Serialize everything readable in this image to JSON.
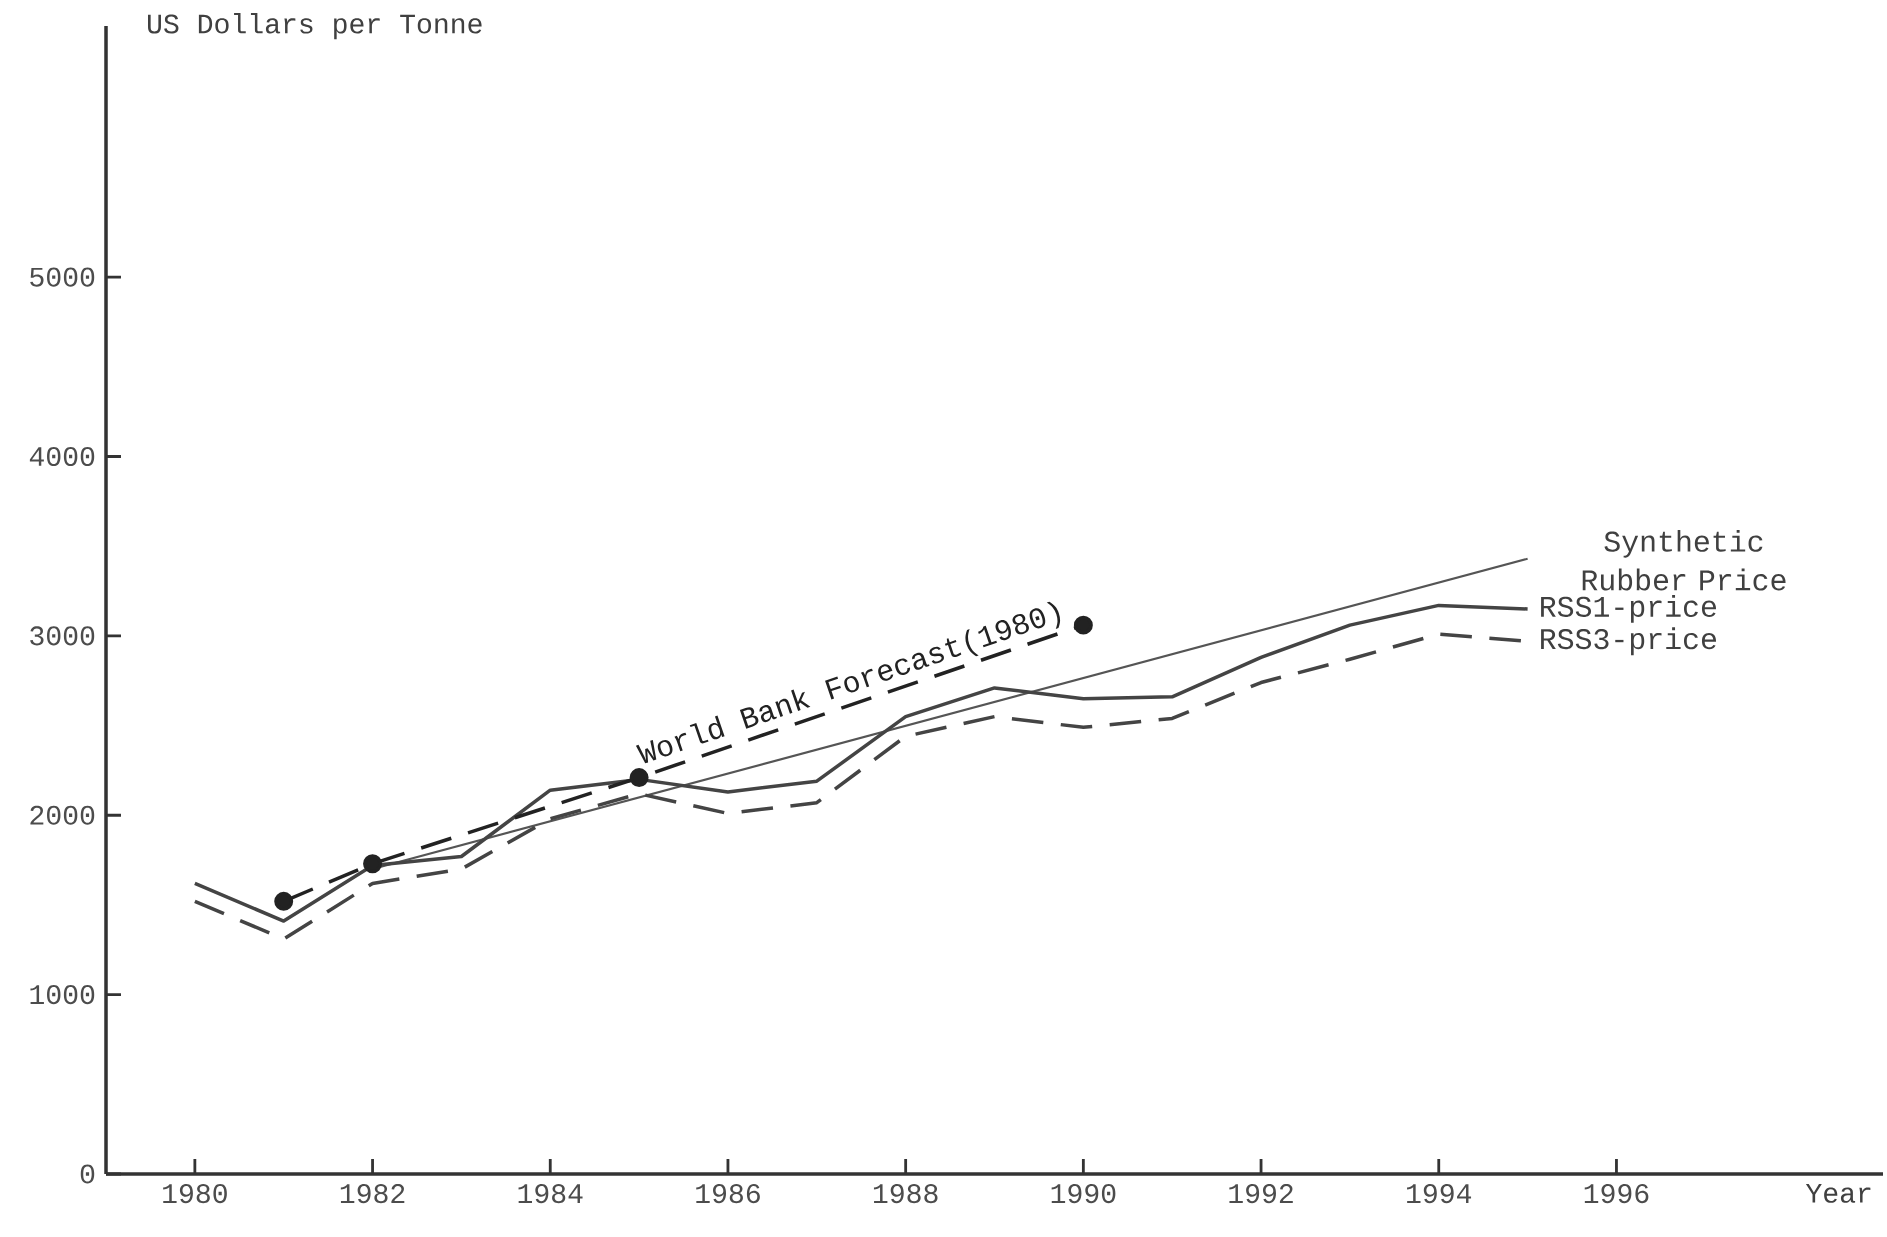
{
  "chart_data": {
    "type": "line",
    "ylabel": "US Dollars per Tonne",
    "xlabel": "Year",
    "xlim": [
      1979,
      1999
    ],
    "ylim": [
      0,
      6400
    ],
    "xticks": [
      1980,
      1982,
      1984,
      1986,
      1988,
      1990,
      1992,
      1994,
      1996
    ],
    "yticks": [
      0,
      1000,
      2000,
      3000,
      4000,
      5000
    ],
    "series": [
      {
        "name": "Synthetic Rubber Price",
        "color": "#555555",
        "line_style": "solid",
        "x": [
          1982,
          1995
        ],
        "values": [
          1700,
          3430
        ]
      },
      {
        "name": "RSS1-price",
        "color": "#444444",
        "line_style": "solid",
        "x": [
          1980,
          1981,
          1982,
          1983,
          1984,
          1985,
          1986,
          1987,
          1988,
          1989,
          1990,
          1991,
          1992,
          1993,
          1994,
          1995
        ],
        "values": [
          1620,
          1410,
          1720,
          1770,
          2140,
          2200,
          2130,
          2190,
          2550,
          2710,
          2650,
          2660,
          2880,
          3060,
          3170,
          3150
        ]
      },
      {
        "name": "RSS3-price",
        "color": "#444444",
        "line_style": "dashed",
        "x": [
          1980,
          1981,
          1982,
          1983,
          1984,
          1985,
          1986,
          1987,
          1988,
          1989,
          1990,
          1991,
          1992,
          1993,
          1994,
          1995
        ],
        "values": [
          1520,
          1310,
          1620,
          1700,
          1980,
          2120,
          2010,
          2070,
          2440,
          2550,
          2490,
          2540,
          2740,
          2870,
          3010,
          2970
        ]
      },
      {
        "name": "World Bank Forecast(1980)",
        "color": "#222222",
        "line_style": "dashed",
        "marker": "circle",
        "x": [
          1981,
          1982,
          1985,
          1990
        ],
        "values": [
          1520,
          1730,
          2210,
          3060
        ]
      }
    ]
  }
}
